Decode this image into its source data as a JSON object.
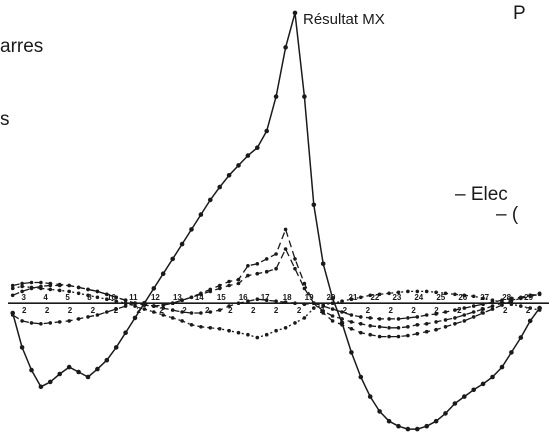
{
  "fragments": {
    "barres": "arres",
    "s": "s",
    "p": "P",
    "elec": "– Elec",
    "dash": "– ("
  },
  "chart_data": {
    "type": "line",
    "title": "Résultat MX",
    "xlabel": "",
    "ylabel": "",
    "x": [
      0,
      1,
      2,
      3,
      4,
      5,
      6,
      7,
      8,
      9,
      10,
      11,
      12,
      13,
      14,
      15,
      16,
      17,
      18,
      19,
      20,
      21,
      22,
      23,
      24,
      25,
      26,
      27,
      28,
      29,
      30,
      31,
      32,
      33,
      34,
      35,
      36,
      37,
      38,
      39,
      40,
      41,
      42,
      43,
      44,
      45,
      46,
      47,
      48,
      49,
      50,
      51,
      52,
      53,
      54,
      55,
      56
    ],
    "xlim": [
      -0.5,
      57
    ],
    "ylim": [
      -135,
      300
    ],
    "grid": false,
    "tick_labels": {
      "top": [
        "3",
        "4",
        "5",
        "8",
        "10",
        "11",
        "12",
        "13",
        "14",
        "15",
        "16",
        "17",
        "18",
        "19",
        "20",
        "21",
        "22",
        "23",
        "24",
        "25",
        "26",
        "27",
        "28",
        "29"
      ],
      "bottom": [
        "2",
        "2",
        "2",
        "2",
        "2",
        "2",
        "2",
        "2",
        "2",
        "2",
        "2",
        "2",
        "2",
        "2",
        "2",
        "2",
        "2",
        "2",
        "2",
        "2",
        "2",
        "2",
        "2"
      ]
    },
    "series": [
      {
        "name": "Résultat MX",
        "style": "solid",
        "values": [
          -10,
          -45,
          -68,
          -85,
          -80,
          -72,
          -65,
          -70,
          -75,
          -67,
          -58,
          -45,
          -30,
          -15,
          0,
          15,
          30,
          45,
          60,
          75,
          90,
          105,
          118,
          130,
          140,
          150,
          158,
          175,
          210,
          260,
          295,
          210,
          100,
          40,
          5,
          -20,
          -50,
          -75,
          -95,
          -110,
          -120,
          -125,
          -128,
          -128,
          -125,
          -120,
          -112,
          -102,
          -95,
          -88,
          -82,
          -75,
          -65,
          -50,
          -35,
          -18,
          -5
        ]
      },
      {
        "style": "dashed",
        "values": [
          18,
          20,
          21,
          21,
          20,
          19,
          18,
          16,
          14,
          12,
          9,
          6,
          3,
          0,
          -2,
          -3,
          -2,
          0,
          3,
          6,
          10,
          14,
          18,
          22,
          24,
          38,
          40,
          45,
          50,
          75,
          45,
          20,
          0,
          -10,
          -18,
          -22,
          -26,
          -30,
          -32,
          -34,
          -34,
          -34,
          -33,
          -31,
          -29,
          -27,
          -24,
          -21,
          -18,
          -14,
          -10,
          -6,
          -2,
          2,
          5,
          8,
          10
        ]
      },
      {
        "style": "dashed",
        "values": [
          8,
          12,
          15,
          17,
          18,
          18,
          18,
          16,
          14,
          12,
          9,
          6,
          3,
          0,
          -2,
          -3,
          -2,
          0,
          3,
          6,
          9,
          12,
          15,
          18,
          20,
          28,
          30,
          32,
          35,
          55,
          35,
          15,
          0,
          -8,
          -13,
          -16,
          -19,
          -21,
          -23,
          -24,
          -25,
          -25,
          -24,
          -22,
          -21,
          -19,
          -17,
          -15,
          -12,
          -9,
          -6,
          -3,
          0,
          3,
          5,
          7,
          9
        ]
      },
      {
        "style": "dashed",
        "values": [
          -12,
          -18,
          -20,
          -21,
          -20,
          -19,
          -18,
          -16,
          -14,
          -12,
          -9,
          -6,
          -3,
          0,
          -1,
          -3,
          -5,
          -7,
          -9,
          -10,
          -10,
          -9,
          -7,
          -3,
          0,
          2,
          4,
          3,
          2,
          1,
          0,
          -1,
          0,
          -3,
          -6,
          -9,
          -12,
          -14,
          -15,
          -16,
          -16,
          -16,
          -15,
          -14,
          -12,
          -11,
          -9,
          -7,
          -5,
          -3,
          -1,
          1,
          3,
          5,
          6,
          8,
          9
        ]
      },
      {
        "style": "dotted",
        "values": [
          15,
          17,
          16,
          15,
          14,
          13,
          12,
          10,
          8,
          6,
          4,
          2,
          0,
          -3,
          -6,
          -9,
          -12,
          -15,
          -18,
          -22,
          -24,
          -25,
          -26,
          -28,
          -30,
          -32,
          -35,
          -32,
          -28,
          -25,
          -20,
          -15,
          -5,
          -2,
          0,
          2,
          4,
          6,
          8,
          9,
          10,
          11,
          12,
          12,
          12,
          11,
          10,
          9,
          8,
          7,
          5,
          3,
          1,
          -1,
          -3,
          -5,
          -7
        ]
      }
    ]
  }
}
